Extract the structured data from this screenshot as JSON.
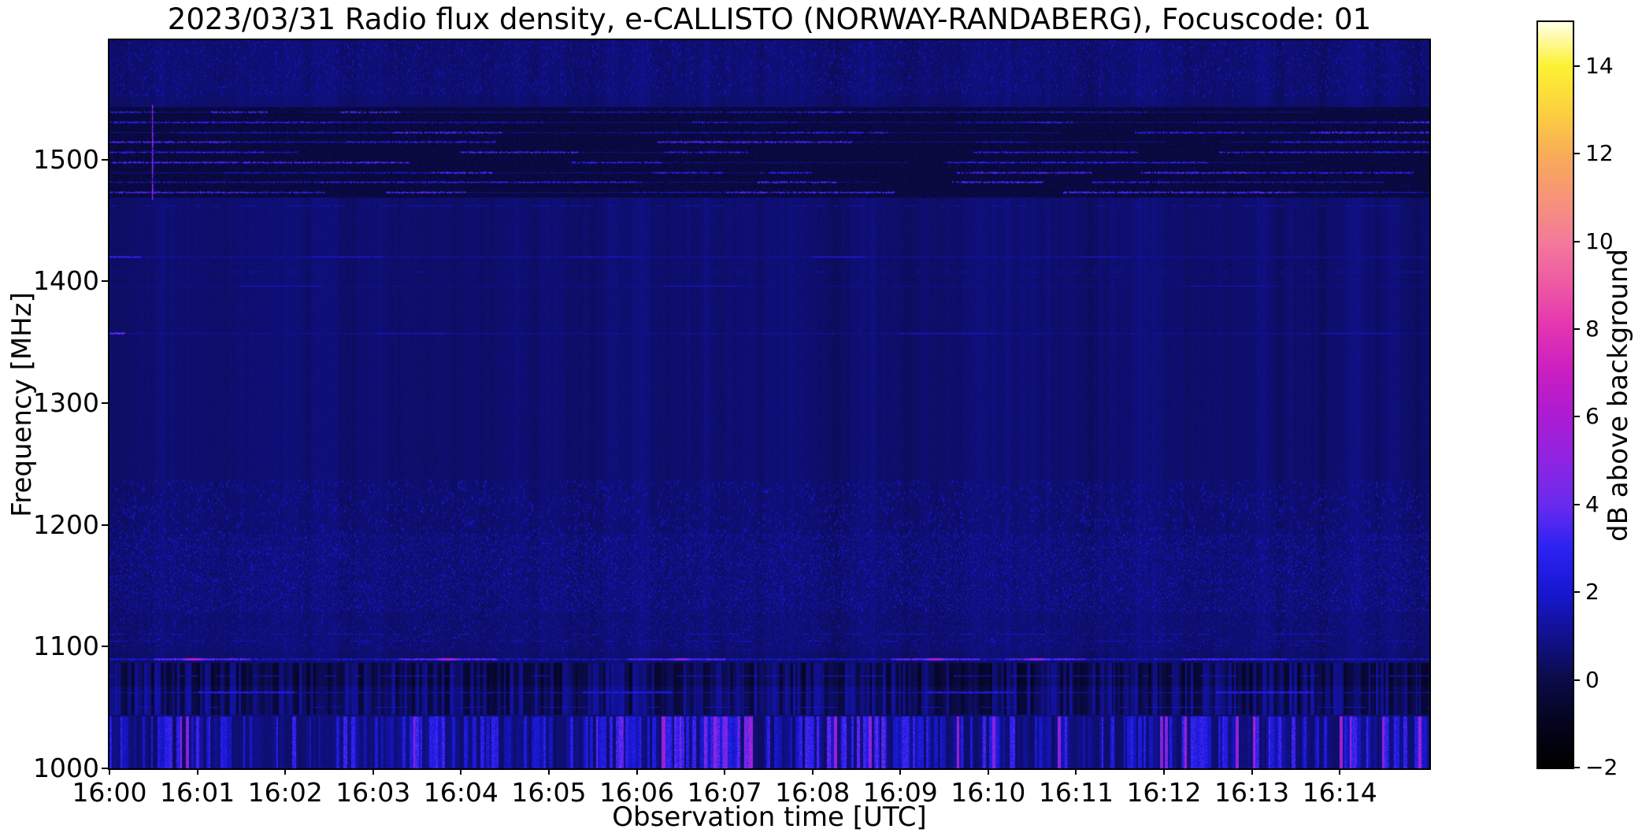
{
  "chart_data": {
    "type": "heatmap",
    "title": "2023/03/31  Radio flux density, e-CALLISTO (NORWAY-RANDABERG), Focuscode: 01",
    "xlabel": "Observation time [UTC]",
    "ylabel": "Frequency [MHz]",
    "observation": {
      "date": "2023/03/31",
      "instrument": "e-CALLISTO",
      "station": "NORWAY-RANDABERG",
      "focuscode": "01",
      "quantity": "Radio flux density"
    },
    "x_axis": {
      "start_label": "16:00",
      "range_minutes": [
        0,
        15.02
      ],
      "ticks": [
        {
          "label": "16:00",
          "minute": 0
        },
        {
          "label": "16:01",
          "minute": 1
        },
        {
          "label": "16:02",
          "minute": 2
        },
        {
          "label": "16:03",
          "minute": 3
        },
        {
          "label": "16:04",
          "minute": 4
        },
        {
          "label": "16:05",
          "minute": 5
        },
        {
          "label": "16:06",
          "minute": 6
        },
        {
          "label": "16:07",
          "minute": 7
        },
        {
          "label": "16:08",
          "minute": 8
        },
        {
          "label": "16:09",
          "minute": 9
        },
        {
          "label": "16:10",
          "minute": 10
        },
        {
          "label": "16:11",
          "minute": 11
        },
        {
          "label": "16:12",
          "minute": 12
        },
        {
          "label": "16:13",
          "minute": 13
        },
        {
          "label": "16:14",
          "minute": 14
        }
      ]
    },
    "y_axis": {
      "range_mhz": [
        1000,
        1598
      ],
      "ticks": [
        {
          "label": "1000",
          "value": 1000
        },
        {
          "label": "1100",
          "value": 1100
        },
        {
          "label": "1200",
          "value": 1200
        },
        {
          "label": "1300",
          "value": 1300
        },
        {
          "label": "1400",
          "value": 1400
        },
        {
          "label": "1500",
          "value": 1500
        }
      ]
    },
    "colorbar": {
      "label": "dB above background",
      "range": [
        -2,
        15
      ],
      "ticks": [
        {
          "label": "−2",
          "value": -2
        },
        {
          "label": "0",
          "value": 0
        },
        {
          "label": "2",
          "value": 2
        },
        {
          "label": "4",
          "value": 4
        },
        {
          "label": "6",
          "value": 6
        },
        {
          "label": "8",
          "value": 8
        },
        {
          "label": "10",
          "value": 10
        },
        {
          "label": "12",
          "value": 12
        },
        {
          "label": "14",
          "value": 14
        }
      ],
      "colormap_stops": [
        [
          -2,
          "#000000"
        ],
        [
          -1,
          "#04041e"
        ],
        [
          0,
          "#0b0b48"
        ],
        [
          1,
          "#11118f"
        ],
        [
          2,
          "#1717d2"
        ],
        [
          3,
          "#2d22f2"
        ],
        [
          4,
          "#6a2bee"
        ],
        [
          5,
          "#8f24e2"
        ],
        [
          6,
          "#ab1cd3"
        ],
        [
          7,
          "#c91ec2"
        ],
        [
          8,
          "#e333b2"
        ],
        [
          9,
          "#ee58a4"
        ],
        [
          10,
          "#f37a9a"
        ],
        [
          11,
          "#f69478"
        ],
        [
          12,
          "#f8ad58"
        ],
        [
          13,
          "#fbd23e"
        ],
        [
          14,
          "#fdf133"
        ],
        [
          15,
          "#ffffe6"
        ]
      ]
    },
    "features": [
      {
        "name": "background",
        "desc": "quiet navy background near 0.5 dB with slight column variation",
        "render": {
          "type": "base",
          "mean": 0.55,
          "sd": 0.25,
          "col_mod": 0.15
        }
      },
      {
        "name": "upper-mottled-band",
        "desc": "broadband mottling at top of band",
        "freq": [
          1552,
          1598
        ],
        "render": {
          "type": "speckle",
          "density": 0.5,
          "vmin": 0.7,
          "vmax": 2.1,
          "dash": 3,
          "pw": 1
        }
      },
      {
        "name": "satcom-stripe-band",
        "desc": "set of horizontal RFI carriers with time-switching bright segments",
        "freq": [
          1469,
          1543
        ],
        "render": {
          "type": "stripes",
          "count": 9,
          "dark": -0.45,
          "dark_noise": 1.0,
          "seg": [
            0.35,
            2.0
          ],
          "levels": [
            -0.2,
            0.9,
            1.9,
            3.0,
            3.8
          ],
          "weights": [
            0.18,
            0.2,
            0.22,
            0.25,
            0.15
          ]
        }
      },
      {
        "name": "vertical-burst",
        "desc": "narrow magenta broadband spike crossing the stripe band near 16:00:29",
        "time": 0.48,
        "freq": [
          1467,
          1545
        ],
        "render": {
          "type": "vline",
          "v": 6.0,
          "width": 2
        }
      },
      {
        "name": "line-1462",
        "desc": "faint dashed carrier",
        "freq": 1462,
        "render": {
          "type": "dashline",
          "v": 1.6,
          "duty": 0.45,
          "dash": 5
        }
      },
      {
        "name": "line-1420",
        "desc": "faint continuous carrier with brighter patches",
        "freq": 1420,
        "render": {
          "type": "hline",
          "base": 1.25,
          "noise": 0.5,
          "thick": 2,
          "segments": [
            {
              "t": [
                0,
                0.35
              ],
              "v": 3.2
            },
            {
              "t": [
                2.3,
                3.1
              ],
              "v": 2.2
            },
            {
              "t": [
                5.2,
                6.0
              ],
              "v": 2.0
            },
            {
              "t": [
                8.0,
                8.6
              ],
              "v": 2.4
            },
            {
              "t": [
                11.0,
                11.6
              ],
              "v": 1.9
            }
          ]
        }
      },
      {
        "name": "line-1408",
        "desc": "sparse dashed carrier",
        "freq": 1408,
        "render": {
          "type": "dashline",
          "v": 1.4,
          "duty": 0.3,
          "dash": 4
        }
      },
      {
        "name": "line-1396",
        "desc": "very faint carrier",
        "freq": 1396,
        "render": {
          "type": "hline",
          "base": 0.9,
          "noise": 0.4,
          "thick": 2,
          "segments": [
            {
              "t": [
                1.5,
                2.4
              ],
              "v": 1.8
            },
            {
              "t": [
                6.3,
                7.2
              ],
              "v": 1.7
            },
            {
              "t": [
                12.3,
                13.2
              ],
              "v": 1.6
            }
          ]
        }
      },
      {
        "name": "line-1357",
        "desc": "faint carrier, bright blip at start",
        "freq": 1357,
        "render": {
          "type": "hline",
          "base": 1.1,
          "noise": 0.5,
          "thick": 2,
          "segments": [
            {
              "t": [
                0,
                0.18
              ],
              "v": 4.5
            },
            {
              "t": [
                3.0,
                3.9
              ],
              "v": 2.0
            },
            {
              "t": [
                9.0,
                10.1
              ],
              "v": 2.0
            },
            {
              "t": [
                13.8,
                14.6
              ],
              "v": 1.8
            }
          ]
        }
      },
      {
        "name": "mottle-1200-band",
        "desc": "coarse mottled emission band",
        "freq": [
          1192,
          1237
        ],
        "render": {
          "type": "speckle",
          "density": 0.8,
          "vmin": 0.6,
          "vmax": 1.7,
          "dash": 4,
          "pw": 2
        }
      },
      {
        "name": "gnss-speckle",
        "desc": "dense fine speckle (navigation signals)",
        "freq": [
          1128,
          1192
        ],
        "render": {
          "type": "speckle",
          "density": 1.1,
          "vmin": 0.5,
          "vmax": 2.3,
          "dash": 2,
          "pw": 1
        }
      },
      {
        "name": "gnss-speckle-low",
        "desc": "moderate speckle",
        "freq": [
          1096,
          1128
        ],
        "render": {
          "type": "speckle",
          "density": 0.7,
          "vmin": 0.4,
          "vmax": 2.0,
          "dash": 2,
          "pw": 1
        }
      },
      {
        "name": "line-1110",
        "desc": "dashed segments",
        "freq": 1110,
        "render": {
          "type": "dashline",
          "v": 1.8,
          "duty": 0.35,
          "dash": 6
        }
      },
      {
        "name": "line-1104",
        "desc": "dashed segments",
        "freq": 1104,
        "render": {
          "type": "dashline",
          "v": 1.7,
          "duty": 0.3,
          "dash": 6
        }
      },
      {
        "name": "adsb-1090",
        "desc": "bright intermittent line at 1090 MHz with magenta hot spots",
        "freq": 1089,
        "render": {
          "type": "hline",
          "base": 2.0,
          "noise": 0.8,
          "thick": 3,
          "segments": [
            {
              "t": [
                0.5,
                1.6
              ],
              "v": 4.2
            },
            {
              "t": [
                3.3,
                4.4
              ],
              "v": 4.2
            },
            {
              "t": [
                5.9,
                7.0
              ],
              "v": 4.0
            },
            {
              "t": [
                8.9,
                9.9
              ],
              "v": 4.2
            },
            {
              "t": [
                10.2,
                11.1
              ],
              "v": 4.0
            },
            {
              "t": [
                12.2,
                13.4
              ],
              "v": 3.6
            }
          ],
          "hot": [
            {
              "t": 0.95,
              "v": 7.2
            },
            {
              "t": 3.85,
              "v": 6.8
            },
            {
              "t": 6.5,
              "v": 5.8
            },
            {
              "t": 9.4,
              "v": 6.6
            },
            {
              "t": 10.55,
              "v": 6.2
            }
          ]
        }
      },
      {
        "name": "hatch-band",
        "desc": "vertically hatched dark/bright texture band",
        "freq": [
          1044,
          1086
        ],
        "render": {
          "type": "hatch",
          "vlo": -0.5,
          "vhi": 1.4
        }
      },
      {
        "name": "line-1076",
        "desc": "dashed carrier inside hatch band",
        "freq": 1076,
        "render": {
          "type": "dashline",
          "v": 2.0,
          "duty": 0.4,
          "dash": 8
        }
      },
      {
        "name": "line-1062",
        "desc": "intermittent bright carrier",
        "freq": 1062,
        "render": {
          "type": "hline",
          "base": 1.2,
          "noise": 0.6,
          "thick": 2,
          "segments": [
            {
              "t": [
                1.0,
                2.1
              ],
              "v": 3.0
            },
            {
              "t": [
                5.4,
                6.4
              ],
              "v": 2.8
            },
            {
              "t": [
                9.3,
                10.3
              ],
              "v": 2.8
            },
            {
              "t": [
                12.6,
                13.7
              ],
              "v": 3.0
            }
          ]
        }
      },
      {
        "name": "line-1050",
        "desc": "dashed carrier",
        "freq": 1050,
        "render": {
          "type": "dashline",
          "v": 1.6,
          "duty": 0.35,
          "dash": 7
        }
      },
      {
        "name": "dme-band",
        "desc": "dense bright vertical pulse streaks (aeronautical band)",
        "freq": [
          1000,
          1042
        ],
        "render": {
          "type": "vstreaks",
          "vbg": 0.4,
          "col": [
            2,
            6
          ],
          "p_on": 0.55,
          "v": [
            0.8,
            3.2
          ],
          "p_hot": 0.07,
          "v_hot": 4.5,
          "clusters": [
            {
              "t": [
                5.3,
                7.4
              ],
              "boost": 0.8
            },
            {
              "t": [
                8.0,
                9.3
              ],
              "boost": 0.6
            }
          ]
        }
      }
    ]
  }
}
